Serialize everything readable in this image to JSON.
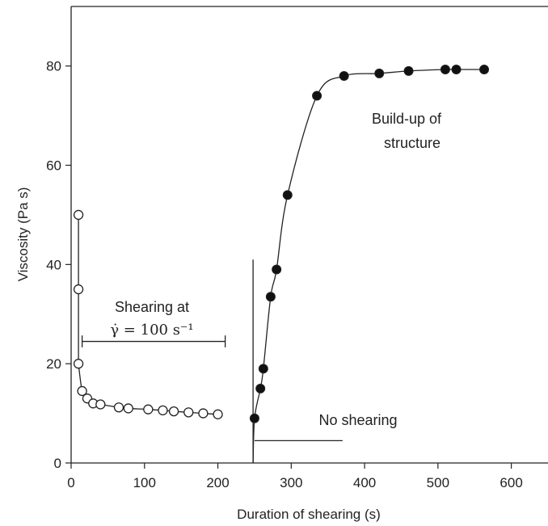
{
  "chart_data": {
    "type": "scatter",
    "title": "",
    "xlabel": "Duration of shearing (s)",
    "ylabel": "Viscosity (Pa s)",
    "xlim": [
      0,
      650
    ],
    "ylim": [
      0,
      92
    ],
    "xticks": [
      0,
      100,
      200,
      300,
      400,
      500,
      600
    ],
    "yticks": [
      0,
      20,
      40,
      60,
      80
    ],
    "grid": false,
    "colors": {
      "axis": "#222222",
      "open": "#ffffff",
      "filled": "#111111"
    },
    "series": [
      {
        "marker": "open",
        "x": [
          10,
          10,
          10,
          15,
          22,
          30,
          40,
          65,
          78,
          105,
          125,
          140,
          160,
          180,
          200
        ],
        "y": [
          50,
          35,
          20,
          14.5,
          13,
          12,
          11.8,
          11.2,
          11,
          10.8,
          10.6,
          10.4,
          10.2,
          10,
          9.8
        ]
      },
      {
        "marker": "filled",
        "x": [
          250,
          258,
          262,
          272,
          280,
          295,
          335,
          372,
          420,
          460,
          510,
          525,
          563
        ],
        "y": [
          9,
          15,
          19,
          33.5,
          39,
          54,
          74,
          78,
          78.5,
          79,
          79.3,
          79.3,
          79.3
        ]
      }
    ],
    "annotations": {
      "shearing_line1": "Shearing at",
      "shearing_rate": "γ̇ = 100 s⁻¹",
      "buildup_line1": "Build-up of",
      "buildup_line2": "structure",
      "no_shearing": "No shearing"
    }
  }
}
